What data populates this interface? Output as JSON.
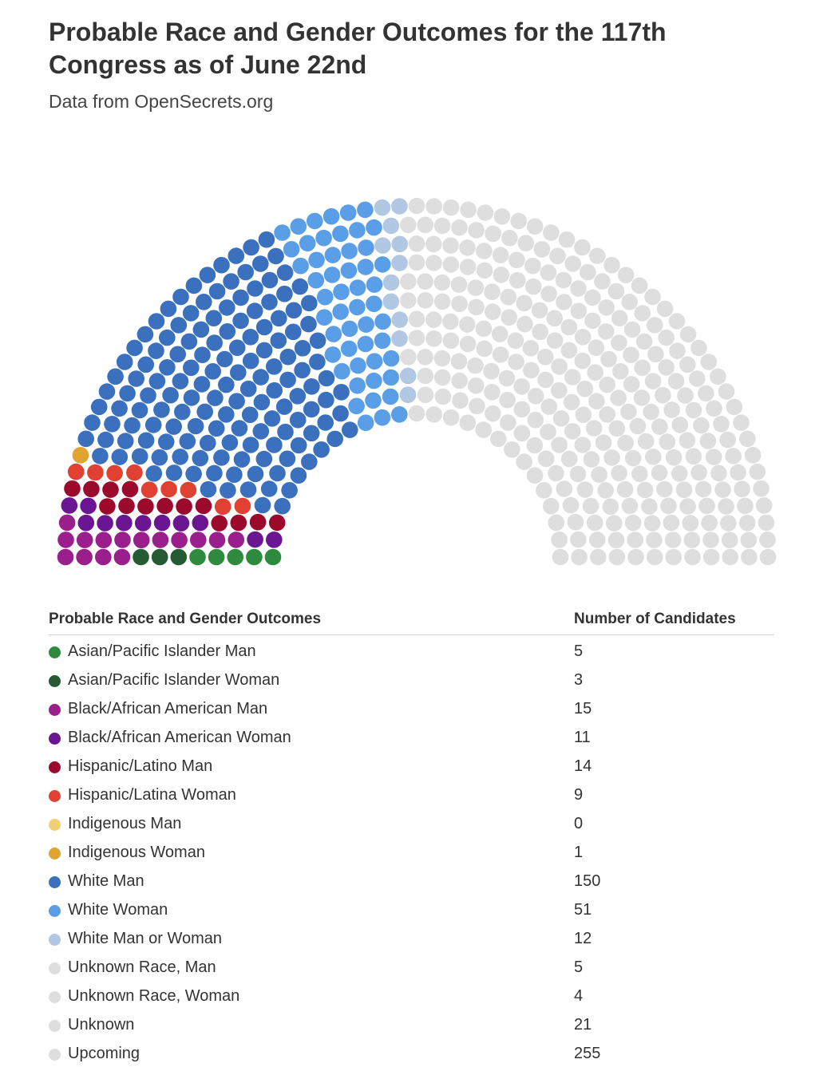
{
  "header": {
    "title": "Probable Race and Gender Outcomes for the 117th Congress as of June 22nd",
    "subtitle": "Data from OpenSecrets.org"
  },
  "legend": {
    "col_label": "Probable Race and Gender Outcomes",
    "col_value": "Number of Candidates"
  },
  "chart_data": {
    "type": "parliament",
    "total_seats": 556,
    "categories": [
      {
        "label": "Asian/Pacific Islander Man",
        "value": 5,
        "color": "#2e8b3e"
      },
      {
        "label": "Asian/Pacific Islander Woman",
        "value": 3,
        "color": "#255a33"
      },
      {
        "label": "Black/African American Man",
        "value": 15,
        "color": "#9a1f8c"
      },
      {
        "label": "Black/African American Woman",
        "value": 11,
        "color": "#6a1592"
      },
      {
        "label": "Hispanic/Latino Man",
        "value": 14,
        "color": "#9b0a2c"
      },
      {
        "label": "Hispanic/Latina Woman",
        "value": 9,
        "color": "#e04133"
      },
      {
        "label": "Indigenous Man",
        "value": 0,
        "color": "#f2cf70"
      },
      {
        "label": "Indigenous Woman",
        "value": 1,
        "color": "#e0a530"
      },
      {
        "label": "White Man",
        "value": 150,
        "color": "#3a70bd"
      },
      {
        "label": "White Woman",
        "value": 51,
        "color": "#5b9ee8"
      },
      {
        "label": "White Man or Woman",
        "value": 12,
        "color": "#b2c7e2"
      },
      {
        "label": "Unknown Race, Man",
        "value": 5,
        "color": "#dedede"
      },
      {
        "label": "Unknown Race, Woman",
        "value": 4,
        "color": "#dedede"
      },
      {
        "label": "Unknown",
        "value": 21,
        "color": "#dedede"
      },
      {
        "label": "Upcoming",
        "value": 255,
        "color": "#dedede"
      }
    ]
  }
}
